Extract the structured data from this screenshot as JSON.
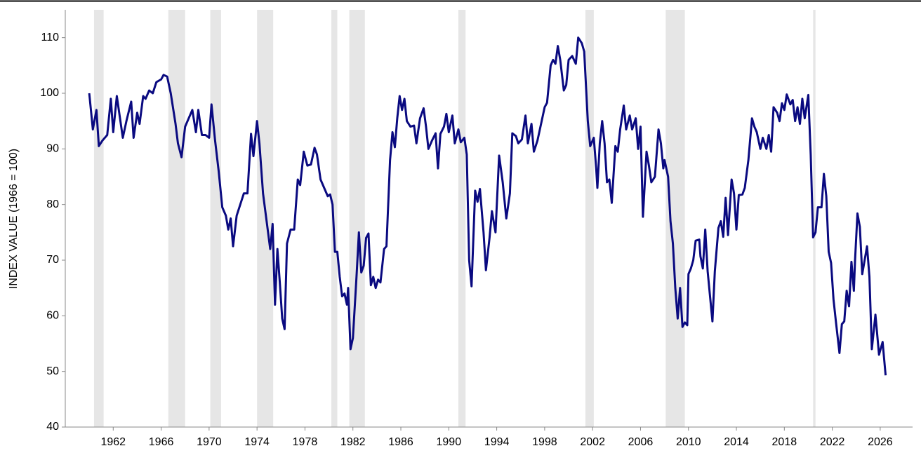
{
  "chart_data": {
    "type": "line",
    "y_label": "INDEX VALUE (1966 = 100)",
    "xlim": [
      1958,
      2028.7
    ],
    "xticks": [
      1962,
      1966,
      1970,
      1974,
      1978,
      1982,
      1986,
      1990,
      1994,
      1998,
      2002,
      2006,
      2010,
      2014,
      2018,
      2022,
      2026
    ],
    "ylim": [
      40,
      115
    ],
    "yticks": [
      40,
      50,
      60,
      70,
      80,
      90,
      100,
      110
    ],
    "recessions": [
      [
        1960.4,
        1961.2
      ],
      [
        1966.6,
        1968.0
      ],
      [
        1970.1,
        1971.0
      ],
      [
        1974.0,
        1975.35
      ],
      [
        1980.2,
        1980.7
      ],
      [
        1981.7,
        1983.0
      ],
      [
        1990.8,
        1991.4
      ],
      [
        2001.4,
        2002.1
      ],
      [
        2008.1,
        2009.7
      ],
      [
        2020.4,
        2020.6
      ]
    ],
    "recession_color": "#e6e6e6",
    "series": [
      {
        "color": "#0a0a80",
        "x": [
          1960.0,
          1960.3,
          1960.6,
          1960.8,
          1961.1,
          1961.5,
          1961.8,
          1962.0,
          1962.3,
          1962.6,
          1962.8,
          1963.1,
          1963.5,
          1963.7,
          1964.0,
          1964.2,
          1964.5,
          1964.7,
          1965.0,
          1965.3,
          1965.6,
          1966.0,
          1966.2,
          1966.5,
          1966.8,
          1967.2,
          1967.4,
          1967.7,
          1968.0,
          1968.3,
          1968.6,
          1968.9,
          1969.1,
          1969.4,
          1969.7,
          1970.0,
          1970.2,
          1970.5,
          1970.8,
          1971.1,
          1971.4,
          1971.6,
          1971.8,
          1972.0,
          1972.3,
          1972.6,
          1972.9,
          1973.2,
          1973.5,
          1973.7,
          1974.0,
          1974.2,
          1974.5,
          1974.8,
          1975.1,
          1975.3,
          1975.5,
          1975.7,
          1975.9,
          1976.1,
          1976.3,
          1976.5,
          1976.8,
          1977.1,
          1977.4,
          1977.6,
          1977.9,
          1978.2,
          1978.5,
          1978.8,
          1979.0,
          1979.3,
          1979.6,
          1979.9,
          1980.1,
          1980.3,
          1980.5,
          1980.7,
          1980.9,
          1981.1,
          1981.3,
          1981.5,
          1981.6,
          1981.8,
          1982.0,
          1982.3,
          1982.5,
          1982.7,
          1982.9,
          1983.1,
          1983.3,
          1983.5,
          1983.7,
          1983.9,
          1984.1,
          1984.3,
          1984.6,
          1984.8,
          1985.1,
          1985.3,
          1985.5,
          1985.7,
          1985.9,
          1986.1,
          1986.3,
          1986.5,
          1986.8,
          1987.1,
          1987.3,
          1987.6,
          1987.9,
          1988.1,
          1988.3,
          1988.6,
          1988.9,
          1989.1,
          1989.3,
          1989.6,
          1989.8,
          1990.0,
          1990.3,
          1990.5,
          1990.8,
          1991.0,
          1991.3,
          1991.5,
          1991.7,
          1991.9,
          1992.2,
          1992.4,
          1992.6,
          1992.9,
          1993.1,
          1993.4,
          1993.6,
          1993.9,
          1994.2,
          1994.5,
          1994.8,
          1995.1,
          1995.3,
          1995.6,
          1995.8,
          1996.1,
          1996.4,
          1996.6,
          1996.9,
          1997.1,
          1997.4,
          1997.7,
          1998.0,
          1998.2,
          1998.5,
          1998.7,
          1998.9,
          1999.1,
          1999.3,
          1999.6,
          1999.8,
          2000.0,
          2000.3,
          2000.6,
          2000.8,
          2001.1,
          2001.3,
          2001.6,
          2001.8,
          2002.1,
          2002.3,
          2002.4,
          2002.6,
          2002.8,
          2003.0,
          2003.2,
          2003.4,
          2003.6,
          2003.9,
          2004.1,
          2004.3,
          2004.6,
          2004.8,
          2005.1,
          2005.3,
          2005.6,
          2005.8,
          2006.0,
          2006.2,
          2006.5,
          2006.7,
          2006.9,
          2007.2,
          2007.5,
          2007.7,
          2007.9,
          2008.0,
          2008.3,
          2008.5,
          2008.7,
          2008.9,
          2009.1,
          2009.3,
          2009.5,
          2009.7,
          2009.9,
          2010.0,
          2010.2,
          2010.4,
          2010.6,
          2010.9,
          2011.0,
          2011.2,
          2011.4,
          2011.6,
          2011.8,
          2012.0,
          2012.2,
          2012.5,
          2012.7,
          2012.9,
          2013.1,
          2013.3,
          2013.6,
          2013.8,
          2014.0,
          2014.2,
          2014.5,
          2014.7,
          2015.0,
          2015.3,
          2015.5,
          2015.7,
          2016.0,
          2016.2,
          2016.5,
          2016.7,
          2016.9,
          2017.1,
          2017.4,
          2017.6,
          2017.8,
          2018.0,
          2018.2,
          2018.5,
          2018.7,
          2018.9,
          2019.1,
          2019.3,
          2019.5,
          2019.7,
          2020.0,
          2020.2,
          2020.4,
          2020.6,
          2020.8,
          2021.1,
          2021.3,
          2021.5,
          2021.7,
          2021.9,
          2022.1,
          2022.3,
          2022.6,
          2022.8,
          2023.0,
          2023.2,
          2023.4,
          2023.6,
          2023.8,
          2023.9,
          2024.1,
          2024.3,
          2024.5,
          2024.7,
          2024.9,
          2025.1,
          2025.3,
          2025.6,
          2025.9,
          2026.2,
          2026.45
        ],
        "values": [
          100,
          93.5,
          97,
          90.5,
          91.5,
          92.5,
          99,
          93,
          99.5,
          95,
          92,
          95,
          98.5,
          92,
          96.5,
          94.5,
          99.5,
          99,
          100.5,
          100,
          102,
          102.5,
          103.3,
          103,
          100,
          94.5,
          91,
          88.5,
          94,
          95.5,
          97,
          93,
          97,
          92.5,
          92.5,
          92,
          98,
          91.5,
          86,
          79.5,
          78,
          75.5,
          77.5,
          72.5,
          78,
          80,
          82,
          82,
          92.7,
          88.7,
          95,
          91,
          82,
          77,
          72,
          76.5,
          62,
          72,
          66,
          59.5,
          57.6,
          73,
          75.5,
          75.5,
          84.5,
          83.5,
          89.5,
          87,
          87.2,
          90.2,
          89,
          84.5,
          83,
          81.5,
          81.8,
          80,
          71.5,
          71.5,
          67,
          63.5,
          64,
          62,
          65,
          54,
          56,
          67,
          75,
          67.8,
          69,
          74,
          74.8,
          65.5,
          67,
          65,
          66.5,
          66,
          72,
          72.5,
          88,
          93,
          90.3,
          95.5,
          99.5,
          97,
          99,
          95,
          94,
          94.2,
          91,
          95.5,
          97.3,
          94,
          90,
          91.5,
          92.8,
          86.5,
          92.7,
          94,
          96.3,
          93,
          96,
          91,
          93.5,
          91.2,
          92,
          89,
          70,
          65.3,
          82.5,
          80.5,
          82.8,
          75,
          68.2,
          74,
          78.8,
          75,
          88.8,
          84,
          77.5,
          82,
          92.8,
          92.3,
          91,
          91.7,
          96,
          91,
          94.5,
          89.5,
          91.5,
          94.5,
          97.5,
          98.3,
          105,
          106,
          105.3,
          108.5,
          106,
          100.5,
          101.5,
          106,
          106.7,
          105.3,
          110,
          109,
          107.5,
          95,
          90.5,
          92,
          86.5,
          83,
          91,
          95,
          91,
          84,
          84.5,
          80.3,
          90.5,
          89.5,
          93.5,
          97.8,
          93.5,
          96,
          93.5,
          95.5,
          90,
          94,
          77.8,
          89.5,
          87,
          84,
          85,
          93.5,
          91,
          86.5,
          88,
          85,
          77,
          73,
          65,
          59.5,
          65,
          58,
          58.8,
          58.3,
          67.5,
          68.5,
          70,
          73.5,
          73.7,
          70.7,
          68.5,
          75.5,
          68,
          63.5,
          59,
          68,
          75.8,
          77,
          74.2,
          81.2,
          74.5,
          84.5,
          82,
          75.5,
          81.7,
          81.8,
          83,
          88,
          95.5,
          94,
          93,
          90,
          92,
          90,
          92.5,
          89.5,
          97.5,
          96.5,
          95,
          98.2,
          97,
          99.8,
          98,
          98.8,
          95,
          97.5,
          94.5,
          99,
          95.5,
          99.7,
          89,
          74.1,
          75,
          79.5,
          79.5,
          85.5,
          81.5,
          71.5,
          69.5,
          63,
          59,
          53.3,
          58.5,
          59,
          64.5,
          61.7,
          69.7,
          64.5,
          70,
          78.4,
          76,
          67.5,
          70,
          72.5,
          67,
          54,
          60.2,
          53,
          55.3,
          49.3
        ]
      }
    ]
  }
}
